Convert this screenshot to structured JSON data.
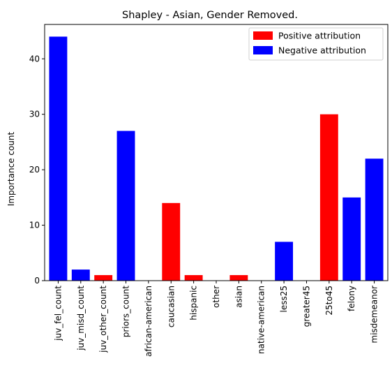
{
  "chart_data": {
    "type": "bar",
    "title": "Shapley - Asian, Gender Removed.",
    "xlabel": "",
    "ylabel": "Importance count",
    "ylim": [
      0,
      46.2
    ],
    "yticks": [
      0,
      10,
      20,
      30,
      40
    ],
    "categories": [
      "juv_fel_count",
      "juv_misd_count",
      "juv_other_count",
      "priors_count",
      "african-american",
      "caucasian",
      "hispanic",
      "other",
      "asian",
      "native-american",
      "less25",
      "greater45",
      "25to45",
      "felony",
      "misdemeanor"
    ],
    "values": [
      44,
      2,
      1,
      27,
      0,
      14,
      1,
      0,
      1,
      0,
      7,
      0,
      30,
      15,
      22
    ],
    "bar_series": [
      "negative",
      "negative",
      "positive",
      "negative",
      "negative",
      "positive",
      "positive",
      "positive",
      "positive",
      "negative",
      "negative",
      "positive",
      "positive",
      "negative",
      "negative"
    ],
    "series": [
      {
        "key": "positive",
        "name": "Positive attribution",
        "color": "#ff0000"
      },
      {
        "key": "negative",
        "name": "Negative attribution",
        "color": "#0000ff"
      }
    ],
    "grid": false,
    "legend_position": "top-right"
  }
}
